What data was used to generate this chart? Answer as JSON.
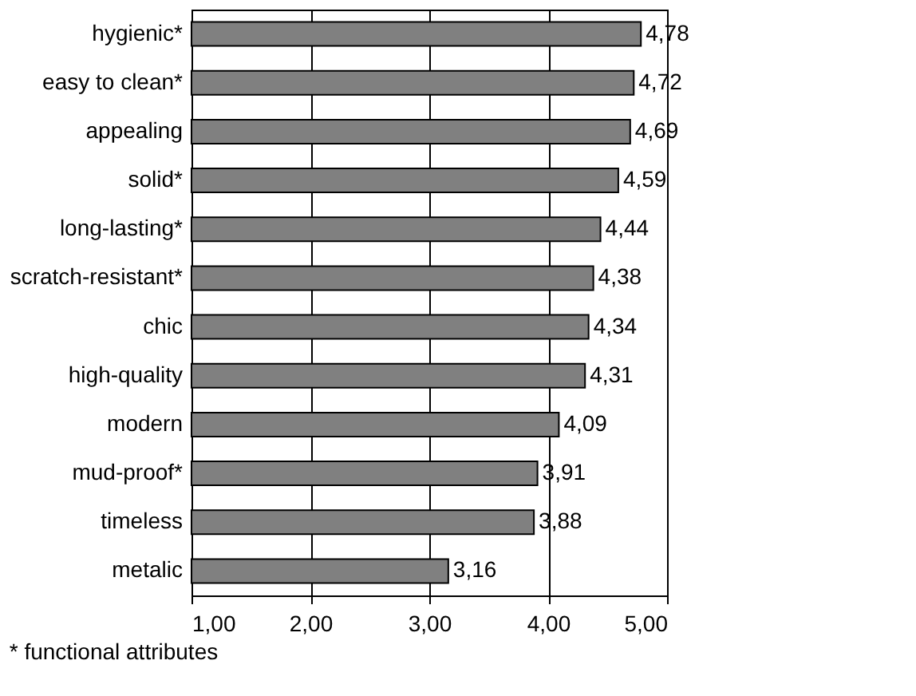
{
  "chart_data": {
    "type": "bar",
    "orientation": "horizontal",
    "categories": [
      "hygienic*",
      "easy to clean*",
      "appealing",
      "solid*",
      "long-lasting*",
      "scratch-resistant*",
      "chic",
      "high-quality",
      "modern",
      "mud-proof*",
      "timeless",
      "metalic"
    ],
    "values": [
      4.78,
      4.72,
      4.69,
      4.59,
      4.44,
      4.38,
      4.34,
      4.31,
      4.09,
      3.91,
      3.88,
      3.16
    ],
    "value_labels": [
      "4,78",
      "4,72",
      "4,69",
      "4,59",
      "4,44",
      "4,38",
      "4,34",
      "4,31",
      "4,09",
      "3,91",
      "3,88",
      "3,16"
    ],
    "color": "#808080",
    "xlim": [
      1,
      5
    ],
    "xticks": [
      {
        "value": 1,
        "label": "1,00"
      },
      {
        "value": 2,
        "label": "2,00"
      },
      {
        "value": 3,
        "label": "3,00"
      },
      {
        "value": 4,
        "label": "4,00"
      },
      {
        "value": 5,
        "label": "5,00"
      }
    ],
    "grid": "x",
    "annotations": [
      "* functional attributes"
    ]
  }
}
